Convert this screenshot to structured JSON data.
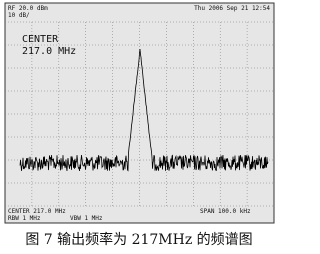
{
  "screen": {
    "top_left": "RF 20.0 dBm",
    "top_left_2": "10 dB/",
    "top_right": "Thu 2006 Sep 21 12:54",
    "marker_label": "CENTER",
    "marker_value": "217.0 MHz",
    "bottom_left": "CENTER 217.0 MHz",
    "bottom_left_2": "RBW 1 MHz",
    "bottom_mid": "VBW 1 MHz",
    "bottom_right": "SPAN 100.0 kHz"
  },
  "caption": "图 7 输出频率为 217MHz 的频谱图"
}
